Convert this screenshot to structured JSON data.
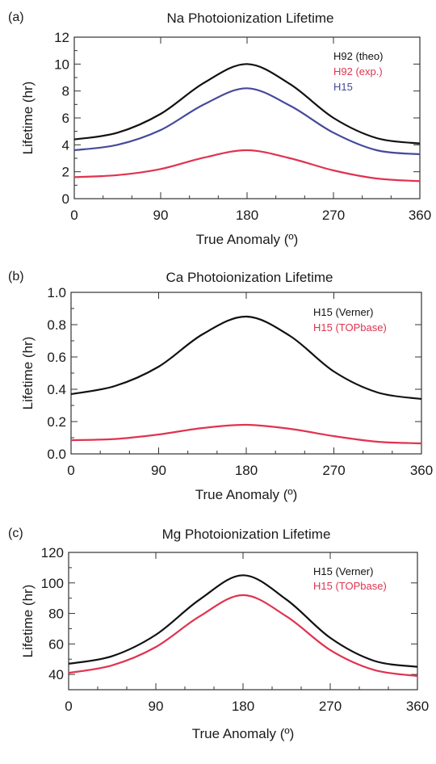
{
  "chart_data": [
    {
      "type": "line",
      "panel_label": "(a)",
      "title": "Na Photoionization Lifetime",
      "xlabel": "True Anomaly (º)",
      "ylabel": "Lifetime (hr)",
      "xlim": [
        0,
        360
      ],
      "ylim": [
        0,
        12
      ],
      "xticks": [
        "0",
        "90",
        "180",
        "270",
        "360"
      ],
      "yticks": [
        "0",
        "2",
        "4",
        "6",
        "8",
        "10",
        "12"
      ],
      "legend_position": "top-right",
      "x": [
        0,
        45,
        90,
        135,
        180,
        225,
        270,
        315,
        360
      ],
      "series": [
        {
          "name": "H92 (theo)",
          "color": "#111111",
          "values": [
            4.4,
            4.9,
            6.3,
            8.6,
            10.0,
            8.5,
            6.0,
            4.5,
            4.1
          ]
        },
        {
          "name": "H92 (exp.)",
          "color": "#e0334f",
          "values": [
            1.6,
            1.75,
            2.2,
            3.05,
            3.6,
            3.0,
            2.1,
            1.5,
            1.3
          ]
        },
        {
          "name": "H15",
          "color": "#44499a",
          "values": [
            3.6,
            4.0,
            5.1,
            7.0,
            8.2,
            6.9,
            4.9,
            3.6,
            3.3
          ]
        }
      ]
    },
    {
      "type": "line",
      "panel_label": "(b)",
      "title": "Ca Photoionization Lifetime",
      "xlabel": "True Anomaly (º)",
      "ylabel": "Lifetime (hr)",
      "xlim": [
        0,
        360
      ],
      "ylim": [
        0,
        1.0
      ],
      "xticks": [
        "0",
        "90",
        "180",
        "270",
        "360"
      ],
      "yticks": [
        "0.0",
        "0.2",
        "0.4",
        "0.6",
        "0.8",
        "1.0"
      ],
      "legend_position": "top-right",
      "x": [
        0,
        45,
        90,
        135,
        180,
        225,
        270,
        315,
        360
      ],
      "series": [
        {
          "name": "H15 (Verner)",
          "color": "#111111",
          "values": [
            0.37,
            0.42,
            0.54,
            0.74,
            0.85,
            0.73,
            0.51,
            0.38,
            0.34
          ]
        },
        {
          "name": "H15 (TOPbase)",
          "color": "#e0334f",
          "values": [
            0.085,
            0.092,
            0.12,
            0.16,
            0.18,
            0.155,
            0.11,
            0.075,
            0.065
          ]
        }
      ]
    },
    {
      "type": "line",
      "panel_label": "(c)",
      "title": "Mg Photoionization Lifetime",
      "xlabel": "True Anomaly (º)",
      "ylabel": "Lifetime (hr)",
      "xlim": [
        0,
        360
      ],
      "ylim": [
        30,
        120
      ],
      "xticks": [
        "0",
        "90",
        "180",
        "270",
        "360"
      ],
      "yticks": [
        "40",
        "60",
        "80",
        "100",
        "120"
      ],
      "legend_position": "top-right",
      "x": [
        0,
        45,
        90,
        135,
        180,
        225,
        270,
        315,
        360
      ],
      "series": [
        {
          "name": "H15 (Verner)",
          "color": "#111111",
          "values": [
            47,
            52,
            66,
            89,
            105,
            89,
            64,
            49,
            45
          ]
        },
        {
          "name": "H15 (TOPbase)",
          "color": "#e0334f",
          "values": [
            41,
            46,
            58,
            78,
            92,
            78,
            56,
            43,
            39
          ]
        }
      ]
    }
  ]
}
